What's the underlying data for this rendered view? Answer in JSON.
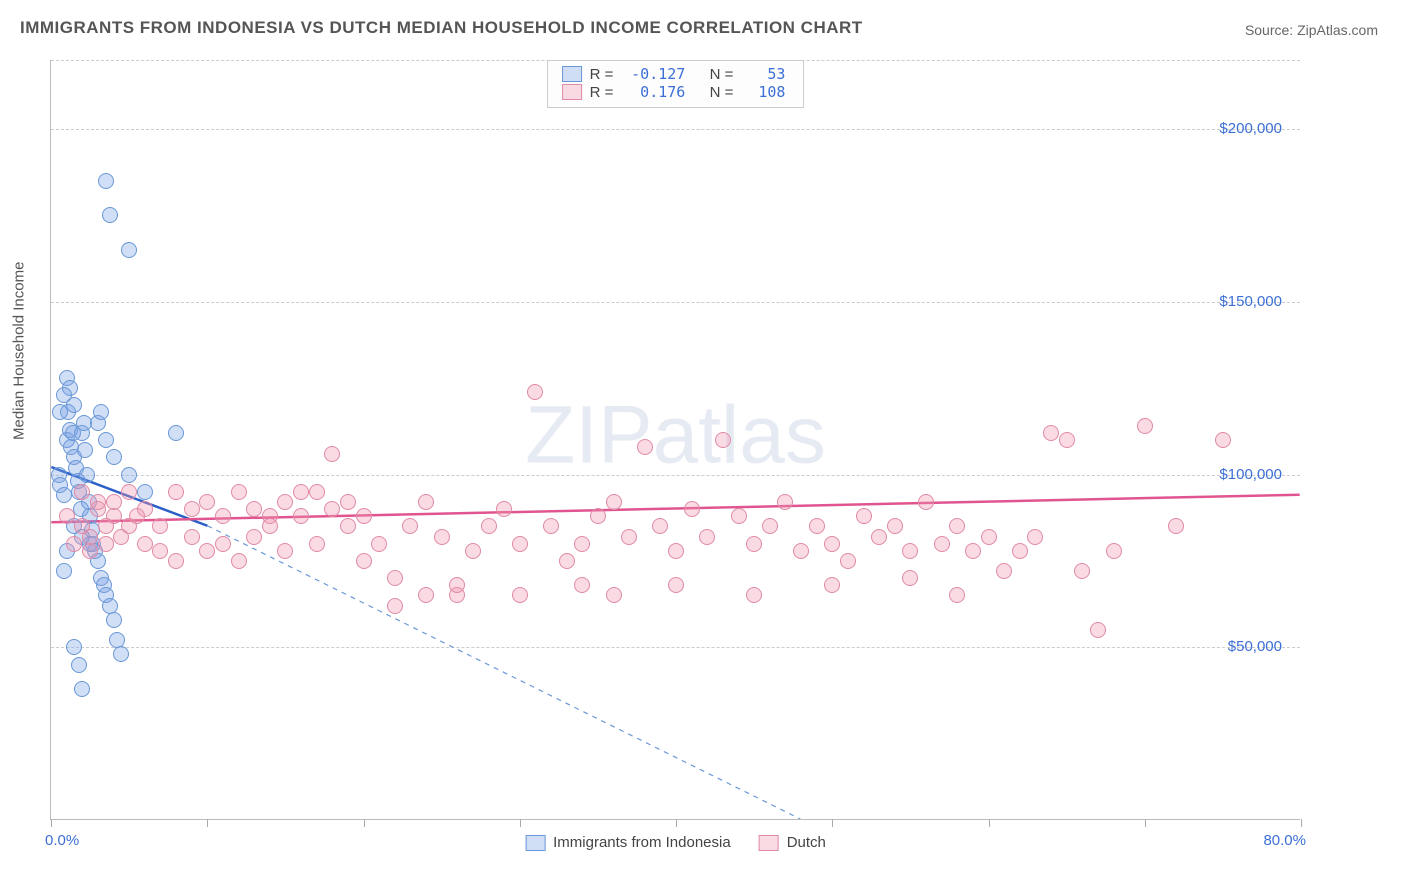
{
  "title": "IMMIGRANTS FROM INDONESIA VS DUTCH MEDIAN HOUSEHOLD INCOME CORRELATION CHART",
  "source_label": "Source:",
  "source_value": "ZipAtlas.com",
  "ylabel": "Median Household Income",
  "watermark": "ZIPatlas",
  "chart": {
    "type": "scatter",
    "xlim": [
      0,
      80
    ],
    "ylim": [
      0,
      220000
    ],
    "xtick_label_left": "0.0%",
    "xtick_label_right": "80.0%",
    "xtick_positions": [
      0,
      10,
      20,
      30,
      40,
      50,
      60,
      70,
      80
    ],
    "ytick_values": [
      50000,
      100000,
      150000,
      200000
    ],
    "ytick_labels": [
      "$50,000",
      "$100,000",
      "$150,000",
      "$200,000"
    ],
    "grid_color": "#cccccc",
    "background_color": "#ffffff",
    "series": [
      {
        "name": "Immigrants from Indonesia",
        "fill_color": "rgba(120,160,230,0.35)",
        "stroke_color": "#6a98d8",
        "line_color": "#2b5fc7",
        "R": "-0.127",
        "N": "53",
        "trend": {
          "x1": 0,
          "y1": 102000,
          "x2": 10,
          "y2": 85000
        },
        "trend_extend": {
          "x1": 10,
          "y1": 85000,
          "x2": 48,
          "y2": 0
        },
        "points": [
          [
            0.5,
            100000
          ],
          [
            0.6,
            97000
          ],
          [
            0.8,
            94000
          ],
          [
            1.0,
            110000
          ],
          [
            1.1,
            118000
          ],
          [
            1.2,
            113000
          ],
          [
            1.3,
            108000
          ],
          [
            1.4,
            112000
          ],
          [
            1.5,
            120000
          ],
          [
            1.5,
            105000
          ],
          [
            1.6,
            102000
          ],
          [
            1.7,
            98000
          ],
          [
            1.8,
            95000
          ],
          [
            1.9,
            90000
          ],
          [
            2.0,
            112000
          ],
          [
            2.1,
            115000
          ],
          [
            2.2,
            107000
          ],
          [
            2.3,
            100000
          ],
          [
            2.4,
            92000
          ],
          [
            2.5,
            88000
          ],
          [
            2.6,
            84000
          ],
          [
            2.7,
            80000
          ],
          [
            2.8,
            78000
          ],
          [
            3.0,
            75000
          ],
          [
            3.2,
            70000
          ],
          [
            3.4,
            68000
          ],
          [
            3.5,
            65000
          ],
          [
            3.8,
            62000
          ],
          [
            4.0,
            58000
          ],
          [
            4.2,
            52000
          ],
          [
            4.5,
            48000
          ],
          [
            2.0,
            38000
          ],
          [
            1.8,
            45000
          ],
          [
            1.5,
            50000
          ],
          [
            3.0,
            115000
          ],
          [
            3.2,
            118000
          ],
          [
            3.5,
            110000
          ],
          [
            4.0,
            105000
          ],
          [
            5.0,
            100000
          ],
          [
            6.0,
            95000
          ],
          [
            8.0,
            112000
          ],
          [
            1.0,
            128000
          ],
          [
            1.2,
            125000
          ],
          [
            0.8,
            123000
          ],
          [
            0.6,
            118000
          ],
          [
            3.5,
            185000
          ],
          [
            3.8,
            175000
          ],
          [
            5.0,
            165000
          ],
          [
            1.5,
            85000
          ],
          [
            2.0,
            82000
          ],
          [
            2.5,
            80000
          ],
          [
            1.0,
            78000
          ],
          [
            0.8,
            72000
          ]
        ]
      },
      {
        "name": "Dutch",
        "fill_color": "rgba(240,150,175,0.35)",
        "stroke_color": "#e08aa5",
        "line_color": "#e05590",
        "R": "0.176",
        "N": "108",
        "trend": {
          "x1": 0,
          "y1": 86000,
          "x2": 80,
          "y2": 94000
        },
        "points": [
          [
            1,
            88000
          ],
          [
            2,
            85000
          ],
          [
            2.5,
            82000
          ],
          [
            3,
            90000
          ],
          [
            3.5,
            80000
          ],
          [
            4,
            92000
          ],
          [
            5,
            85000
          ],
          [
            6,
            80000
          ],
          [
            7,
            78000
          ],
          [
            8,
            75000
          ],
          [
            9,
            82000
          ],
          [
            10,
            78000
          ],
          [
            11,
            80000
          ],
          [
            12,
            75000
          ],
          [
            13,
            82000
          ],
          [
            14,
            88000
          ],
          [
            15,
            78000
          ],
          [
            16,
            95000
          ],
          [
            17,
            80000
          ],
          [
            18,
            106000
          ],
          [
            19,
            85000
          ],
          [
            20,
            75000
          ],
          [
            21,
            80000
          ],
          [
            22,
            70000
          ],
          [
            23,
            85000
          ],
          [
            24,
            92000
          ],
          [
            25,
            82000
          ],
          [
            26,
            65000
          ],
          [
            27,
            78000
          ],
          [
            28,
            85000
          ],
          [
            29,
            90000
          ],
          [
            30,
            80000
          ],
          [
            31,
            124000
          ],
          [
            32,
            85000
          ],
          [
            33,
            75000
          ],
          [
            34,
            80000
          ],
          [
            35,
            88000
          ],
          [
            36,
            92000
          ],
          [
            37,
            82000
          ],
          [
            38,
            108000
          ],
          [
            39,
            85000
          ],
          [
            40,
            78000
          ],
          [
            41,
            90000
          ],
          [
            42,
            82000
          ],
          [
            43,
            110000
          ],
          [
            44,
            88000
          ],
          [
            45,
            80000
          ],
          [
            46,
            85000
          ],
          [
            47,
            92000
          ],
          [
            48,
            78000
          ],
          [
            49,
            85000
          ],
          [
            50,
            80000
          ],
          [
            51,
            75000
          ],
          [
            52,
            88000
          ],
          [
            53,
            82000
          ],
          [
            54,
            85000
          ],
          [
            55,
            78000
          ],
          [
            56,
            92000
          ],
          [
            57,
            80000
          ],
          [
            58,
            85000
          ],
          [
            59,
            78000
          ],
          [
            60,
            82000
          ],
          [
            61,
            72000
          ],
          [
            62,
            78000
          ],
          [
            63,
            82000
          ],
          [
            64,
            112000
          ],
          [
            65,
            110000
          ],
          [
            66,
            72000
          ],
          [
            67,
            55000
          ],
          [
            68,
            78000
          ],
          [
            70,
            114000
          ],
          [
            72,
            85000
          ],
          [
            75,
            110000
          ],
          [
            2,
            95000
          ],
          [
            3,
            92000
          ],
          [
            4,
            88000
          ],
          [
            5,
            95000
          ],
          [
            6,
            90000
          ],
          [
            7,
            85000
          ],
          [
            8,
            95000
          ],
          [
            9,
            90000
          ],
          [
            10,
            92000
          ],
          [
            11,
            88000
          ],
          [
            12,
            95000
          ],
          [
            13,
            90000
          ],
          [
            14,
            85000
          ],
          [
            15,
            92000
          ],
          [
            16,
            88000
          ],
          [
            17,
            95000
          ],
          [
            18,
            90000
          ],
          [
            19,
            92000
          ],
          [
            20,
            88000
          ],
          [
            22,
            62000
          ],
          [
            24,
            65000
          ],
          [
            26,
            68000
          ],
          [
            30,
            65000
          ],
          [
            34,
            68000
          ],
          [
            36,
            65000
          ],
          [
            40,
            68000
          ],
          [
            45,
            65000
          ],
          [
            50,
            68000
          ],
          [
            55,
            70000
          ],
          [
            58,
            65000
          ],
          [
            1.5,
            80000
          ],
          [
            2.5,
            78000
          ],
          [
            3.5,
            85000
          ],
          [
            4.5,
            82000
          ],
          [
            5.5,
            88000
          ]
        ]
      }
    ]
  }
}
